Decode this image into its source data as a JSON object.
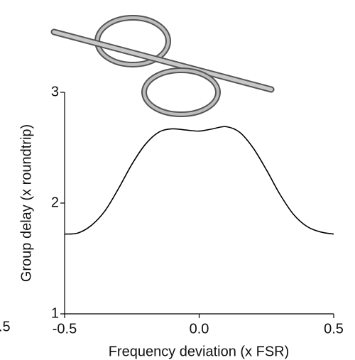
{
  "chart_data": {
    "type": "line",
    "xlabel": "Frequency deviation (x FSR)",
    "ylabel": "Group delay (x roundtrip)",
    "clipped_text": ".5",
    "x": [
      -0.5,
      -0.45,
      -0.4,
      -0.35,
      -0.3,
      -0.25,
      -0.2,
      -0.15,
      -0.1,
      -0.05,
      0,
      0.05,
      0.1,
      0.15,
      0.2,
      0.25,
      0.3,
      0.35,
      0.4,
      0.45,
      0.5
    ],
    "series": [
      {
        "color": "#000000",
        "values": [
          1.72,
          1.73,
          1.8,
          1.93,
          2.13,
          2.35,
          2.53,
          2.64,
          2.67,
          2.66,
          2.65,
          2.67,
          2.69,
          2.64,
          2.5,
          2.3,
          2.08,
          1.9,
          1.79,
          1.74,
          1.72
        ]
      }
    ],
    "xlim": [
      -0.5,
      0.5
    ],
    "xticks": [
      {
        "value": -0.5,
        "label": "-0.5"
      },
      {
        "value": 0,
        "label": "0.0"
      },
      {
        "value": 0.5,
        "label": "0.5"
      }
    ],
    "ylim": [
      1,
      3
    ],
    "yticks": [
      1,
      2,
      3
    ],
    "grid": false
  }
}
